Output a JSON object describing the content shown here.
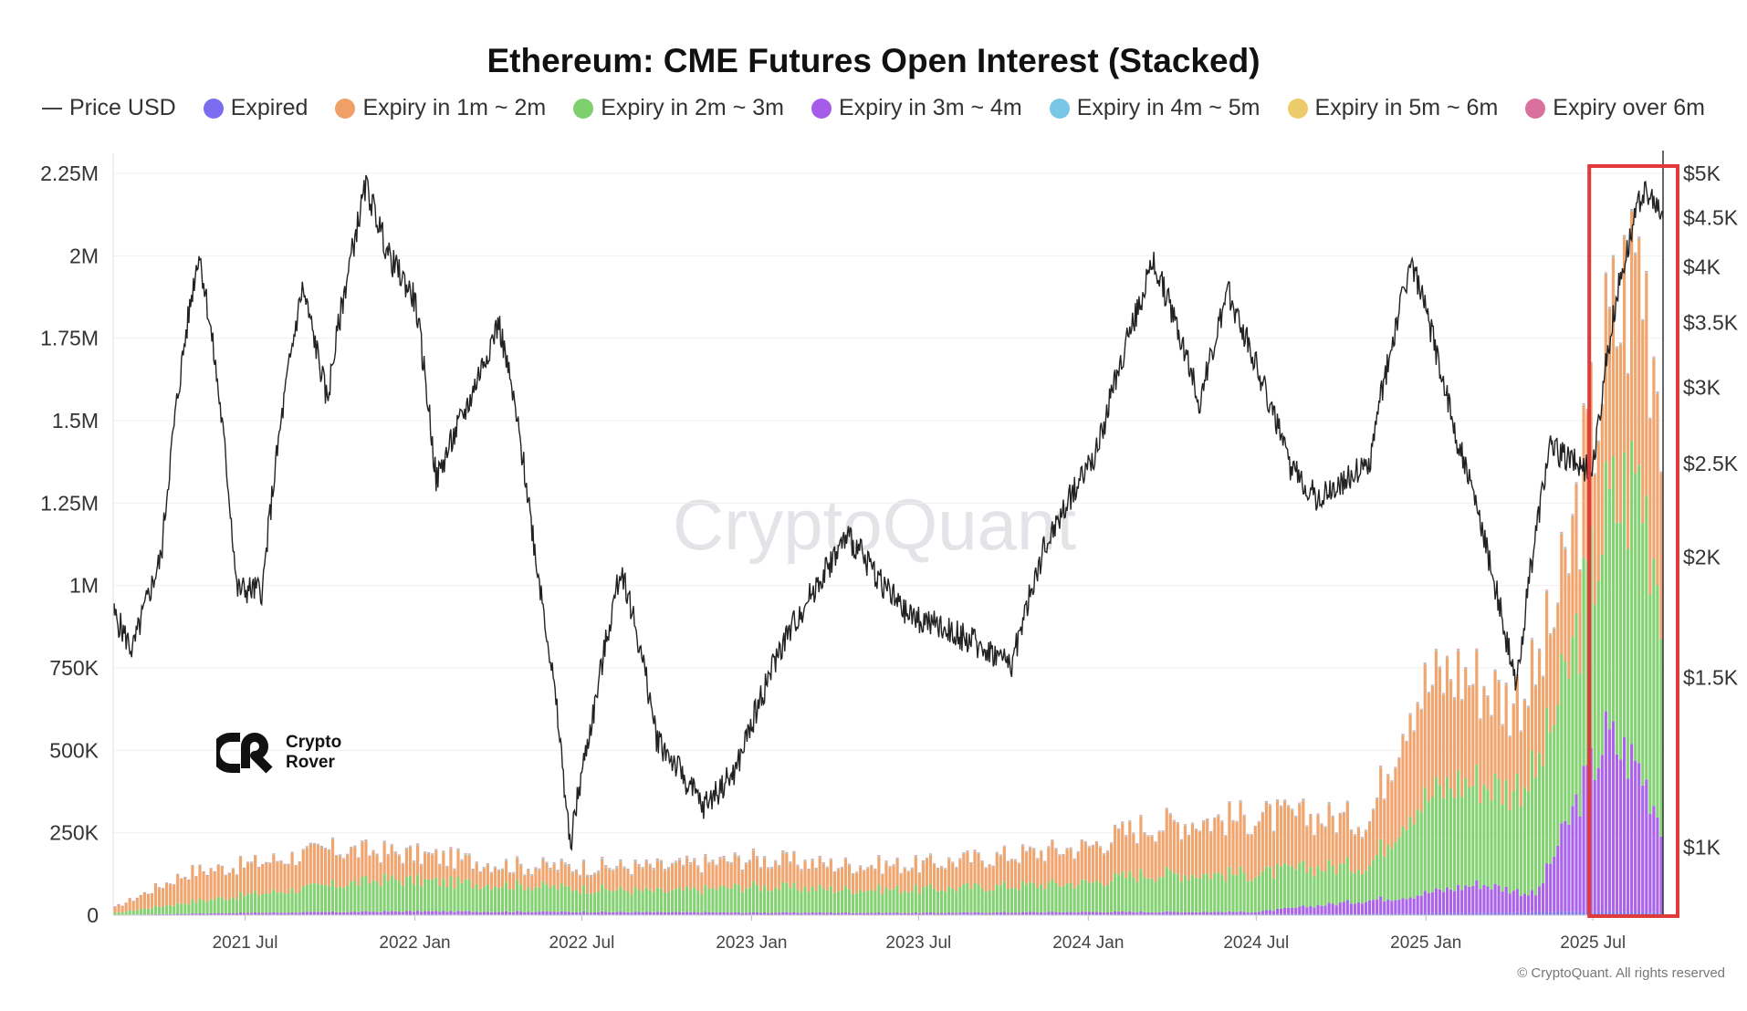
{
  "chart_data": {
    "type": "area",
    "title": "Ethereum: CME Futures Open Interest (Stacked)",
    "legend_placement": "top",
    "grid": true,
    "x_ticks": [
      "2021 Jul",
      "2022 Jan",
      "2022 Jul",
      "2023 Jan",
      "2023 Jul",
      "2024 Jan",
      "2024 Jul",
      "2025 Jan",
      "2025 Jul"
    ],
    "y_left_ticks": [
      "0",
      "250K",
      "500K",
      "750K",
      "1M",
      "1.25M",
      "1.5M",
      "1.75M",
      "2M",
      "2.25M"
    ],
    "y_left_range": [
      0,
      2250000
    ],
    "y_right_ticks": [
      "$1K",
      "$1.5K",
      "$2K",
      "$2.5K",
      "$3K",
      "$3.5K",
      "$4K",
      "$4.5K",
      "$5K"
    ],
    "y_right_range": [
      850,
      5000
    ],
    "y_right_scale": "log",
    "x_range": [
      "2021-02-08",
      "2025-09-15"
    ],
    "series": [
      {
        "name": "Price USD",
        "color": "#222222",
        "kind": "line",
        "x": [
          "2021-02-08",
          "2021-03-01",
          "2021-04-01",
          "2021-05-12",
          "2021-06-22",
          "2021-07-20",
          "2021-09-01",
          "2021-09-28",
          "2021-11-09",
          "2021-12-04",
          "2022-01-01",
          "2022-01-24",
          "2022-03-01",
          "2022-04-02",
          "2022-05-12",
          "2022-06-18",
          "2022-07-15",
          "2022-08-13",
          "2022-09-20",
          "2022-11-09",
          "2022-12-15",
          "2023-01-31",
          "2023-04-15",
          "2023-06-15",
          "2023-08-20",
          "2023-10-10",
          "2023-11-15",
          "2024-01-12",
          "2024-03-12",
          "2024-05-01",
          "2024-06-01",
          "2024-08-05",
          "2024-09-06",
          "2024-11-01",
          "2024-12-16",
          "2025-02-01",
          "2025-03-15",
          "2025-04-09",
          "2025-05-15",
          "2025-07-01",
          "2025-07-28",
          "2025-08-24",
          "2025-09-15"
        ],
        "values": [
          1750,
          1600,
          2000,
          4150,
          1850,
          1850,
          3800,
          2900,
          4850,
          4100,
          3700,
          2400,
          2900,
          3500,
          2000,
          1000,
          1400,
          1950,
          1300,
          1100,
          1200,
          1600,
          2100,
          1750,
          1650,
          1550,
          2050,
          2600,
          4050,
          2900,
          3750,
          2500,
          2300,
          2500,
          4050,
          2700,
          1900,
          1450,
          2600,
          2450,
          3800,
          4800,
          4500
        ]
      },
      {
        "name": "Expired",
        "color": "#7b6cf0",
        "kind": "bar",
        "x": [
          "2021-02-08",
          "2021-07-01",
          "2022-01-01",
          "2022-07-01",
          "2023-01-01",
          "2023-07-01",
          "2024-01-01",
          "2024-07-01",
          "2024-12-01",
          "2025-03-01",
          "2025-07-01",
          "2025-09-15"
        ],
        "values": [
          0,
          2000,
          3000,
          3000,
          2000,
          2000,
          3000,
          3000,
          6000,
          8000,
          12000,
          10000
        ]
      },
      {
        "name": "Expiry in 1m ~ 2m",
        "color": "#f0a066",
        "kind": "bar",
        "x": [
          "2021-02-08",
          "2021-05-01",
          "2021-07-01",
          "2021-10-01",
          "2021-12-01",
          "2022-02-01",
          "2022-05-01",
          "2022-07-01",
          "2022-10-01",
          "2023-01-01",
          "2023-04-01",
          "2023-07-01",
          "2023-10-01",
          "2024-01-01",
          "2024-03-01",
          "2024-05-01",
          "2024-07-01",
          "2024-09-01",
          "2024-11-01",
          "2024-12-15",
          "2025-02-01",
          "2025-04-01",
          "2025-06-01",
          "2025-07-15",
          "2025-08-20",
          "2025-09-15"
        ],
        "values": [
          15000,
          100000,
          100000,
          120000,
          90000,
          80000,
          60000,
          70000,
          80000,
          90000,
          80000,
          80000,
          100000,
          120000,
          160000,
          180000,
          190000,
          170000,
          150000,
          380000,
          380000,
          300000,
          350000,
          560000,
          760000,
          680000
        ]
      },
      {
        "name": "Expiry in 2m ~ 3m",
        "color": "#7ed06e",
        "kind": "bar",
        "x": [
          "2021-02-08",
          "2021-05-01",
          "2021-07-01",
          "2021-10-01",
          "2021-12-01",
          "2022-02-01",
          "2022-05-01",
          "2022-07-01",
          "2022-10-01",
          "2023-01-01",
          "2023-04-01",
          "2023-07-01",
          "2023-10-01",
          "2024-01-01",
          "2024-03-01",
          "2024-05-01",
          "2024-07-01",
          "2024-09-01",
          "2024-11-01",
          "2024-12-15",
          "2025-02-01",
          "2025-04-01",
          "2025-06-01",
          "2025-07-15",
          "2025-08-20",
          "2025-09-15"
        ],
        "values": [
          5000,
          40000,
          60000,
          90000,
          110000,
          100000,
          90000,
          80000,
          70000,
          90000,
          80000,
          80000,
          90000,
          100000,
          130000,
          130000,
          130000,
          130000,
          120000,
          300000,
          360000,
          340000,
          500000,
          750000,
          1000000,
          800000
        ]
      },
      {
        "name": "Expiry in 3m ~ 4m",
        "color": "#a65ce8",
        "kind": "bar",
        "x": [
          "2021-02-08",
          "2021-07-01",
          "2022-01-01",
          "2022-07-01",
          "2023-01-01",
          "2023-07-01",
          "2024-01-01",
          "2024-07-01",
          "2024-12-15",
          "2025-03-01",
          "2025-05-01",
          "2025-07-15",
          "2025-08-20",
          "2025-09-15"
        ],
        "values": [
          1000,
          6000,
          10000,
          8000,
          7000,
          6000,
          8000,
          8000,
          60000,
          100000,
          60000,
          600000,
          500000,
          300000
        ]
      },
      {
        "name": "Expiry in 4m ~ 5m",
        "color": "#79c6e6",
        "kind": "bar",
        "x": [
          "2021-02-08",
          "2022-07-01",
          "2023-07-01",
          "2024-07-01",
          "2025-09-15"
        ],
        "values": [
          1000,
          3000,
          2000,
          2000,
          3000
        ]
      },
      {
        "name": "Expiry in 5m ~ 6m",
        "color": "#eccb6a",
        "kind": "bar",
        "x": [
          "2021-02-08",
          "2022-07-01",
          "2023-07-01",
          "2024-07-01",
          "2025-09-15"
        ],
        "values": [
          500,
          2000,
          1500,
          1500,
          2000
        ]
      },
      {
        "name": "Expiry over 6m",
        "color": "#d9709e",
        "kind": "bar",
        "x": [
          "2021-02-08",
          "2022-07-01",
          "2023-07-01",
          "2024-07-01",
          "2025-09-15"
        ],
        "values": [
          500,
          2000,
          1500,
          1500,
          2000
        ]
      }
    ],
    "highlight_box": {
      "x_from": "2025-07-01",
      "x_to": "2025-09-15",
      "color": "#e03a3a"
    }
  },
  "watermark": "CryptoQuant",
  "logo": {
    "line1": "Crypto",
    "line2": "Rover"
  },
  "copyright": "© CryptoQuant. All rights reserved"
}
